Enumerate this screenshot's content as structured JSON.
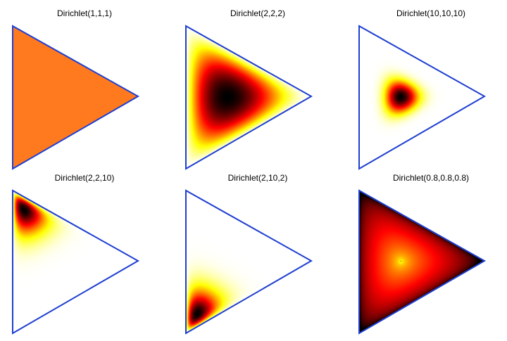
{
  "chart_data": [
    {
      "type": "heatmap",
      "title": "Dirichlet(1,1,1)",
      "alpha": [
        1,
        1,
        1
      ]
    },
    {
      "type": "heatmap",
      "title": "Dirichlet(2,2,2)",
      "alpha": [
        2,
        2,
        2
      ]
    },
    {
      "type": "heatmap",
      "title": "Dirichlet(10,10,10)",
      "alpha": [
        10,
        10,
        10
      ]
    },
    {
      "type": "heatmap",
      "title": "Dirichlet(2,2,10)",
      "alpha": [
        2,
        2,
        10
      ]
    },
    {
      "type": "heatmap",
      "title": "Dirichlet(2,10,2)",
      "alpha": [
        2,
        10,
        2
      ]
    },
    {
      "type": "heatmap",
      "title": "Dirichlet(0.8,0.8,0.8)",
      "alpha": [
        0.8,
        0.8,
        0.8
      ]
    }
  ],
  "colors": {
    "triangle_outline": "#1f3fd0",
    "uniform_fill": "#ff7a1f"
  },
  "colormap": "hot-reversed"
}
